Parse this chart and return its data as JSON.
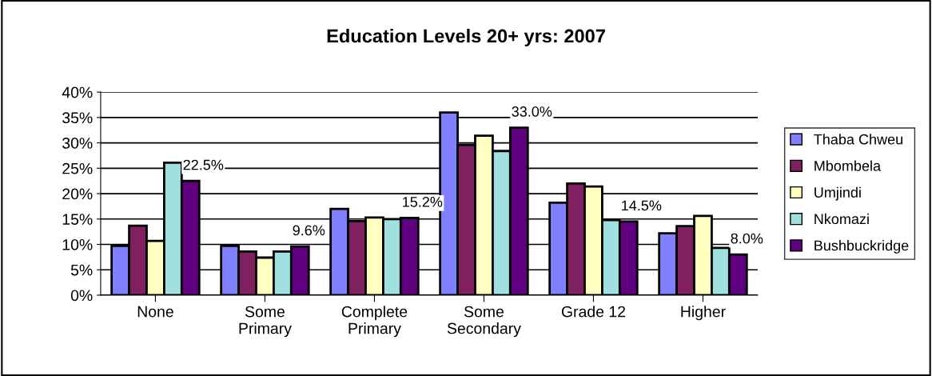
{
  "chart_data": {
    "type": "bar",
    "title": "Education Levels 20+ yrs: 2007",
    "categories": [
      "None",
      "Some\nPrimary",
      "Complete\nPrimary",
      "Some\nSecondary",
      "Grade 12",
      "Higher"
    ],
    "series": [
      {
        "name": "Thaba Chweu",
        "color": "#8080ff",
        "values": [
          9.7,
          9.7,
          17.0,
          36.0,
          18.2,
          12.2
        ]
      },
      {
        "name": "Mbombela",
        "color": "#802060",
        "values": [
          13.7,
          8.6,
          14.6,
          29.6,
          22.0,
          13.6
        ]
      },
      {
        "name": "Umjindi",
        "color": "#ffffc0",
        "values": [
          10.7,
          7.4,
          15.3,
          31.4,
          21.4,
          15.6
        ]
      },
      {
        "name": "Nkomazi",
        "color": "#a0e0e0",
        "values": [
          26.1,
          8.6,
          15.0,
          28.4,
          14.8,
          9.3
        ]
      },
      {
        "name": "Bushbuckridge",
        "color": "#600080",
        "values": [
          22.5,
          9.6,
          15.2,
          33.0,
          14.5,
          8.0
        ],
        "value_labels": [
          "22.5%",
          "9.6%",
          "15.2%",
          "33.0%",
          "14.5%",
          "8.0%"
        ]
      }
    ],
    "ylim": [
      0,
      40
    ],
    "yticks": [
      {
        "value": 0,
        "label": "0%"
      },
      {
        "value": 5,
        "label": "5%"
      },
      {
        "value": 10,
        "label": "10%"
      },
      {
        "value": 15,
        "label": "15%"
      },
      {
        "value": 20,
        "label": "20%"
      },
      {
        "value": 25,
        "label": "25%"
      },
      {
        "value": 30,
        "label": "30%"
      },
      {
        "value": 35,
        "label": "35%"
      },
      {
        "value": 40,
        "label": "40%"
      }
    ],
    "grid": "y",
    "legend": "right"
  }
}
